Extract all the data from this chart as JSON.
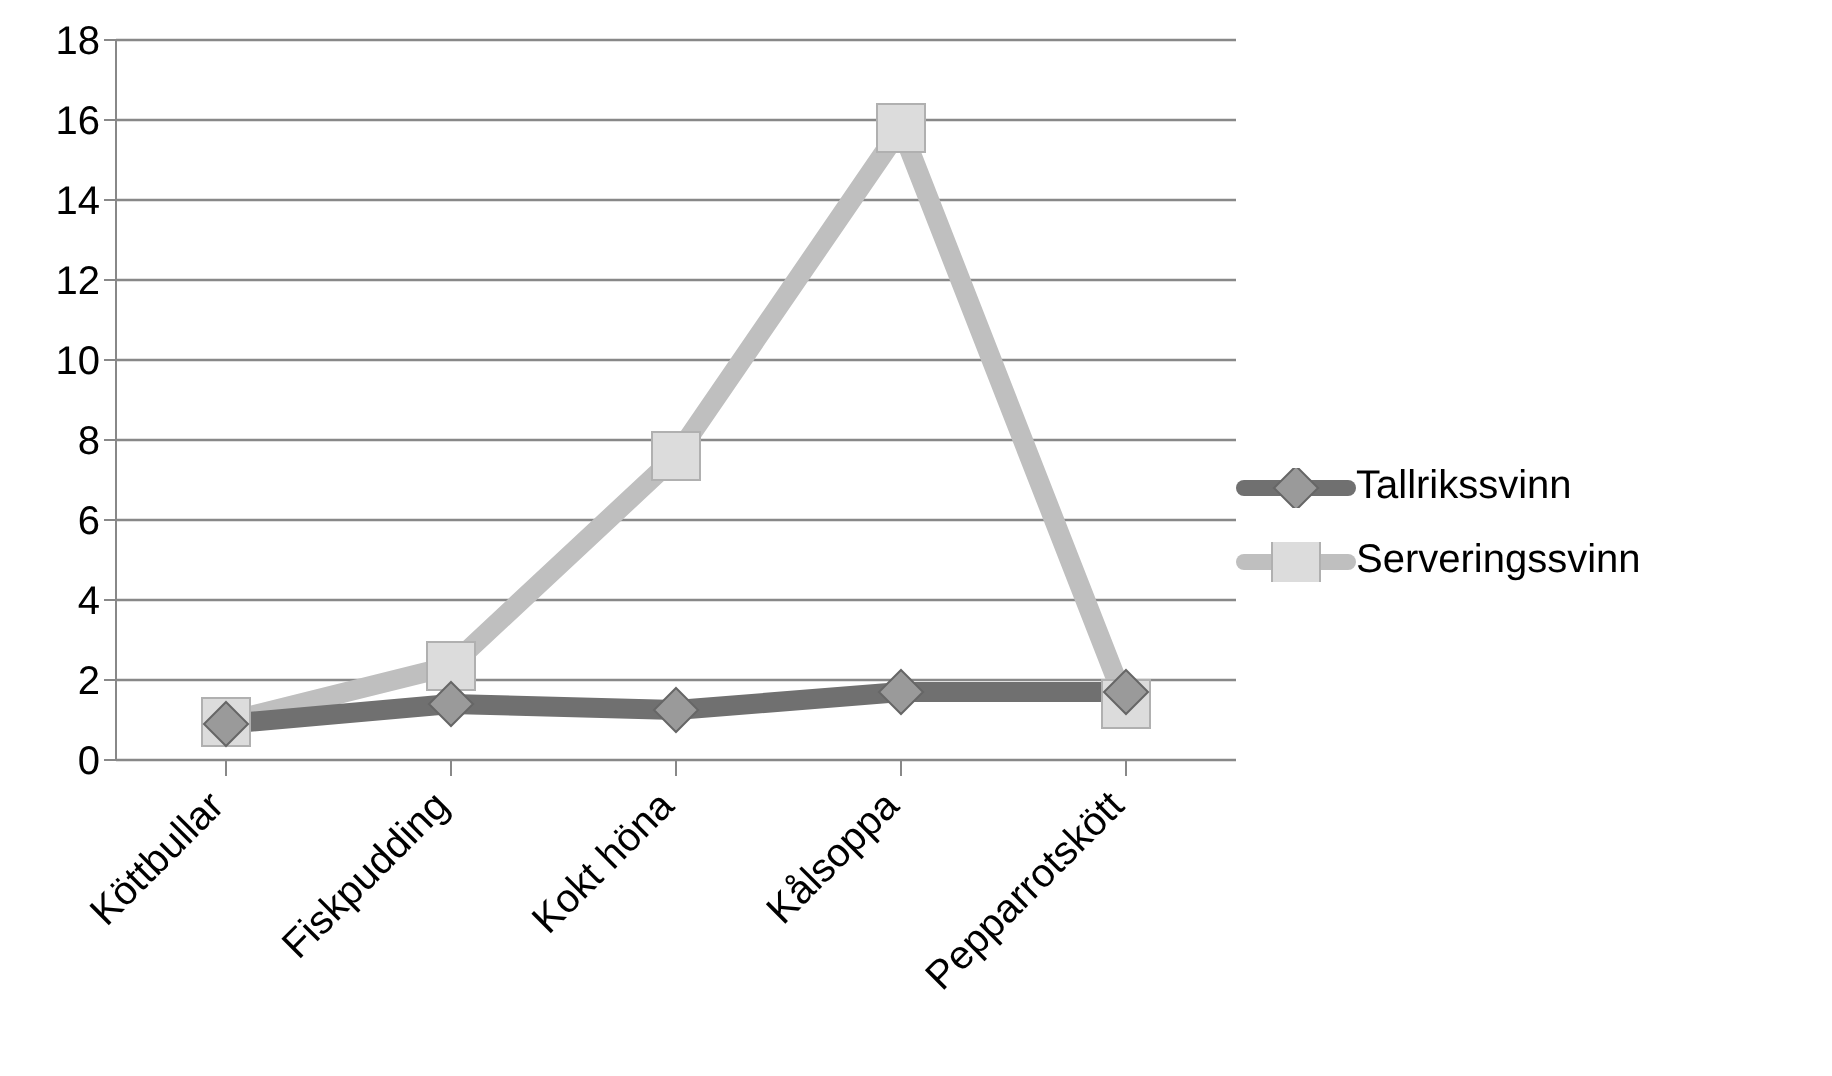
{
  "chart_data": {
    "type": "line",
    "categories": [
      "Köttbullar",
      "Fiskpudding",
      "Kokt höna",
      "Kålsoppa",
      "Pepparrotskött"
    ],
    "series": [
      {
        "name": "Tallrikssvinn",
        "color": "#707070",
        "marker": "diamond",
        "values": [
          0.9,
          1.4,
          1.25,
          1.7,
          1.7
        ]
      },
      {
        "name": "Serveringssvinn",
        "color": "#bfbfbf",
        "marker": "square",
        "values": [
          0.95,
          2.35,
          7.6,
          15.8,
          1.4
        ]
      }
    ],
    "ylim": [
      0,
      18
    ],
    "yticks": [
      0,
      2,
      4,
      6,
      8,
      10,
      12,
      14,
      16,
      18
    ],
    "grid": "y",
    "legend": "right"
  }
}
